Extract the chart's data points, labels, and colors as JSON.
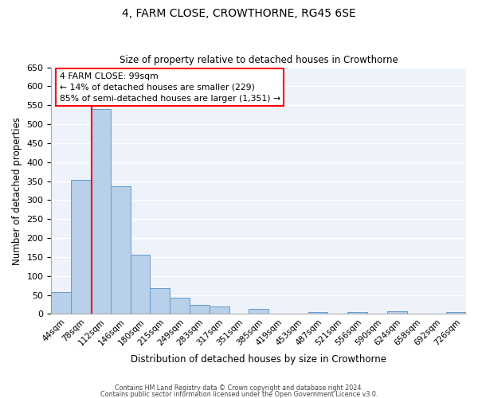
{
  "title": "4, FARM CLOSE, CROWTHORNE, RG45 6SE",
  "subtitle": "Size of property relative to detached houses in Crowthorne",
  "xlabel": "Distribution of detached houses by size in Crowthorne",
  "ylabel": "Number of detached properties",
  "categories": [
    "44sqm",
    "78sqm",
    "112sqm",
    "146sqm",
    "180sqm",
    "215sqm",
    "249sqm",
    "283sqm",
    "317sqm",
    "351sqm",
    "385sqm",
    "419sqm",
    "453sqm",
    "487sqm",
    "521sqm",
    "556sqm",
    "590sqm",
    "624sqm",
    "658sqm",
    "692sqm",
    "726sqm"
  ],
  "values": [
    57,
    353,
    540,
    337,
    157,
    68,
    42,
    25,
    20,
    0,
    13,
    0,
    0,
    5,
    0,
    6,
    0,
    8,
    0,
    0,
    5
  ],
  "bar_color": "#b8d0ea",
  "bar_edge_color": "#6699cc",
  "background_color": "#eef3fb",
  "grid_color": "#ffffff",
  "vline_color": "red",
  "vline_x": 1.55,
  "ylim": [
    0,
    650
  ],
  "yticks": [
    0,
    50,
    100,
    150,
    200,
    250,
    300,
    350,
    400,
    450,
    500,
    550,
    600,
    650
  ],
  "annotation_title": "4 FARM CLOSE: 99sqm",
  "annotation_line1": "← 14% of detached houses are smaller (229)",
  "annotation_line2": "85% of semi-detached houses are larger (1,351) →",
  "footer_line1": "Contains HM Land Registry data © Crown copyright and database right 2024.",
  "footer_line2": "Contains public sector information licensed under the Open Government Licence v3.0."
}
